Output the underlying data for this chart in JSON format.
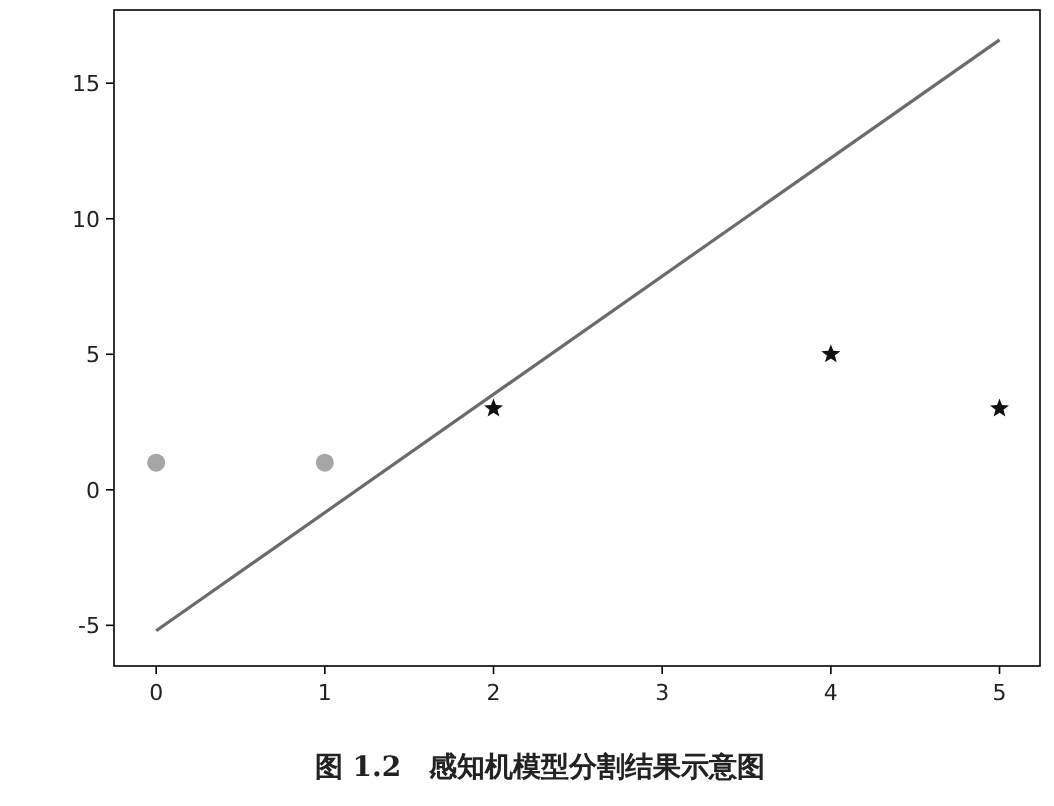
{
  "chart_data": {
    "type": "scatter",
    "xlim": [
      -0.25,
      5.24
    ],
    "ylim": [
      -6.5,
      17.7
    ],
    "xticks": [
      0,
      1,
      2,
      3,
      4,
      5
    ],
    "yticks": [
      -5,
      0,
      5,
      10,
      15
    ],
    "series": [
      {
        "type": "scatter",
        "color": "#a6a6a6",
        "marker": "circle",
        "x": [
          0,
          1
        ],
        "values": [
          1,
          1
        ]
      },
      {
        "type": "scatter",
        "color": "#111111",
        "marker": "star",
        "x": [
          2,
          4,
          5
        ],
        "values": [
          3,
          5,
          3
        ]
      },
      {
        "type": "line",
        "color": "#6b6b6b",
        "marker": "none",
        "x": [
          0,
          5
        ],
        "values": [
          -5.2,
          16.6
        ]
      }
    ],
    "annotations": [
      "图 1.2　感知机模型分割结果示意图"
    ]
  }
}
